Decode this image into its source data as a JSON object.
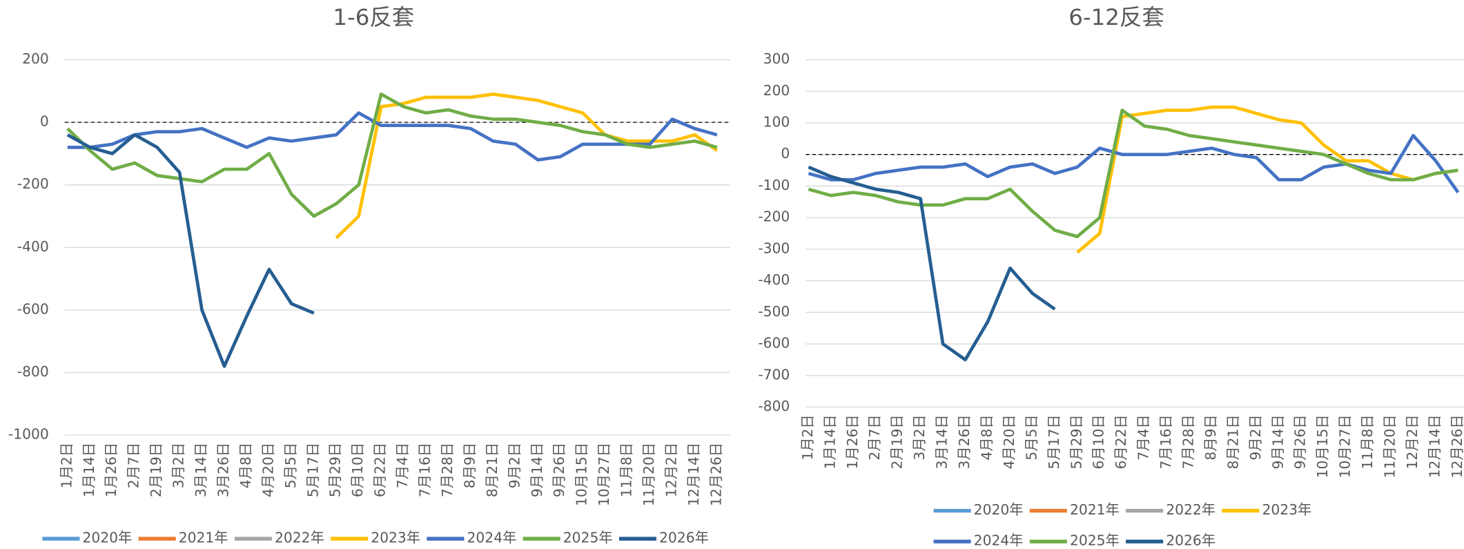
{
  "chart_data": [
    {
      "type": "line",
      "title": "1-6反套",
      "categories": [
        "1月2日",
        "1月14日",
        "1月26日",
        "2月7日",
        "2月19日",
        "3月2日",
        "3月14日",
        "3月26日",
        "4月8日",
        "4月20日",
        "5月5日",
        "5月17日",
        "5月29日",
        "6月10日",
        "6月22日",
        "7月4日",
        "7月16日",
        "7月28日",
        "8月9日",
        "8月21日",
        "9月2日",
        "9月14日",
        "9月26日",
        "10月15日",
        "10月27日",
        "11月8日",
        "11月20日",
        "12月2日",
        "12月14日",
        "12月26日"
      ],
      "ylim": [
        -1000,
        200
      ],
      "yticks": [
        -1000,
        -800,
        -600,
        -400,
        -200,
        0,
        200
      ],
      "grid": true,
      "dashed_zero_line": true,
      "legend": "bottom",
      "series": [
        {
          "name": "2020年",
          "color": "#5b9bd5",
          "values": [
            null,
            null,
            null,
            null,
            null,
            null,
            null,
            null,
            null,
            null,
            null,
            null,
            null,
            null,
            null,
            null,
            null,
            null,
            null,
            null,
            null,
            null,
            null,
            null,
            null,
            null,
            null,
            null,
            null,
            null
          ]
        },
        {
          "name": "2021年",
          "color": "#ed7d31",
          "values": [
            null,
            null,
            null,
            null,
            null,
            null,
            null,
            null,
            null,
            null,
            null,
            null,
            null,
            null,
            null,
            null,
            null,
            null,
            null,
            null,
            null,
            null,
            null,
            null,
            null,
            null,
            null,
            null,
            null,
            null
          ]
        },
        {
          "name": "2022年",
          "color": "#a5a5a5",
          "values": [
            null,
            null,
            null,
            null,
            null,
            null,
            null,
            null,
            null,
            null,
            null,
            null,
            null,
            null,
            null,
            null,
            null,
            null,
            null,
            null,
            null,
            null,
            null,
            null,
            null,
            null,
            null,
            null,
            null,
            null
          ]
        },
        {
          "name": "2023年",
          "color": "#ffc000",
          "values": [
            null,
            null,
            null,
            null,
            null,
            null,
            null,
            null,
            null,
            null,
            null,
            null,
            -370,
            -300,
            50,
            60,
            80,
            80,
            80,
            90,
            80,
            70,
            50,
            30,
            -40,
            -60,
            -60,
            -60,
            -40,
            -90
          ]
        },
        {
          "name": "2024年",
          "color": "#4472c4",
          "values": [
            -80,
            -80,
            -70,
            -40,
            -30,
            -30,
            -20,
            -50,
            -80,
            -50,
            -60,
            -50,
            -40,
            30,
            -10,
            -10,
            -10,
            -10,
            -20,
            -60,
            -70,
            -120,
            -110,
            -70,
            -70,
            -70,
            -70,
            10,
            -20,
            -40
          ]
        },
        {
          "name": "2025年",
          "color": "#70ad47",
          "values": [
            -20,
            -90,
            -150,
            -130,
            -170,
            -180,
            -190,
            -150,
            -150,
            -100,
            -230,
            -300,
            -260,
            -200,
            90,
            50,
            30,
            40,
            20,
            10,
            10,
            0,
            -10,
            -30,
            -40,
            -70,
            -80,
            -70,
            -60,
            -80
          ]
        },
        {
          "name": "2026年",
          "color": "#255e91",
          "values": [
            -40,
            -80,
            -100,
            -40,
            -80,
            -160,
            -600,
            -780,
            -620,
            -470,
            -580,
            -610,
            null,
            null,
            null,
            null,
            null,
            null,
            null,
            null,
            null,
            null,
            null,
            null,
            null,
            null,
            null,
            null,
            null,
            null
          ]
        }
      ]
    },
    {
      "type": "line",
      "title": "6-12反套",
      "categories": [
        "1月2日",
        "1月14日",
        "1月26日",
        "2月7日",
        "2月19日",
        "3月2日",
        "3月14日",
        "3月26日",
        "4月8日",
        "4月20日",
        "5月5日",
        "5月17日",
        "5月29日",
        "6月10日",
        "6月22日",
        "7月4日",
        "7月16日",
        "7月28日",
        "8月9日",
        "8月21日",
        "9月2日",
        "9月14日",
        "9月26日",
        "10月15日",
        "10月27日",
        "11月8日",
        "11月20日",
        "12月2日",
        "12月14日",
        "12月26日"
      ],
      "ylim": [
        -800,
        300
      ],
      "yticks": [
        -800,
        -700,
        -600,
        -500,
        -400,
        -300,
        -200,
        -100,
        0,
        100,
        200,
        300
      ],
      "grid": true,
      "dashed_zero_line": true,
      "legend": "bottom",
      "series": [
        {
          "name": "2020年",
          "color": "#5b9bd5",
          "values": [
            null,
            null,
            null,
            null,
            null,
            null,
            null,
            null,
            null,
            null,
            null,
            null,
            null,
            null,
            null,
            null,
            null,
            null,
            null,
            null,
            null,
            null,
            null,
            null,
            null,
            null,
            null,
            null,
            null,
            null
          ]
        },
        {
          "name": "2021年",
          "color": "#ed7d31",
          "values": [
            null,
            null,
            null,
            null,
            null,
            null,
            null,
            null,
            null,
            null,
            null,
            null,
            null,
            null,
            null,
            null,
            null,
            null,
            null,
            null,
            null,
            null,
            null,
            null,
            null,
            null,
            null,
            null,
            null,
            null
          ]
        },
        {
          "name": "2022年",
          "color": "#a5a5a5",
          "values": [
            null,
            null,
            null,
            null,
            null,
            null,
            null,
            null,
            null,
            null,
            null,
            null,
            null,
            null,
            null,
            null,
            null,
            null,
            null,
            null,
            null,
            null,
            null,
            null,
            null,
            null,
            null,
            null,
            null,
            null
          ]
        },
        {
          "name": "2023年",
          "color": "#ffc000",
          "values": [
            null,
            null,
            null,
            null,
            null,
            null,
            null,
            null,
            null,
            null,
            null,
            null,
            -310,
            -250,
            120,
            130,
            140,
            140,
            150,
            150,
            130,
            110,
            100,
            30,
            -20,
            -20,
            -60,
            -80,
            -60,
            -50
          ]
        },
        {
          "name": "2024年",
          "color": "#4472c4",
          "values": [
            -60,
            -80,
            -80,
            -60,
            -50,
            -40,
            -40,
            -30,
            -70,
            -40,
            -30,
            -60,
            -40,
            20,
            0,
            0,
            0,
            10,
            20,
            0,
            -10,
            -80,
            -80,
            -40,
            -30,
            -50,
            -60,
            60,
            -20,
            -120
          ]
        },
        {
          "name": "2025年",
          "color": "#70ad47",
          "values": [
            -110,
            -130,
            -120,
            -130,
            -150,
            -160,
            -160,
            -140,
            -140,
            -110,
            -180,
            -240,
            -260,
            -200,
            140,
            90,
            80,
            60,
            50,
            40,
            30,
            20,
            10,
            0,
            -30,
            -60,
            -80,
            -80,
            -60,
            -50
          ]
        },
        {
          "name": "2026年",
          "color": "#255e91",
          "values": [
            -40,
            -70,
            -90,
            -110,
            -120,
            -140,
            -600,
            -650,
            -530,
            -360,
            -440,
            -490,
            null,
            null,
            null,
            null,
            null,
            null,
            null,
            null,
            null,
            null,
            null,
            null,
            null,
            null,
            null,
            null,
            null,
            null
          ]
        }
      ]
    }
  ]
}
